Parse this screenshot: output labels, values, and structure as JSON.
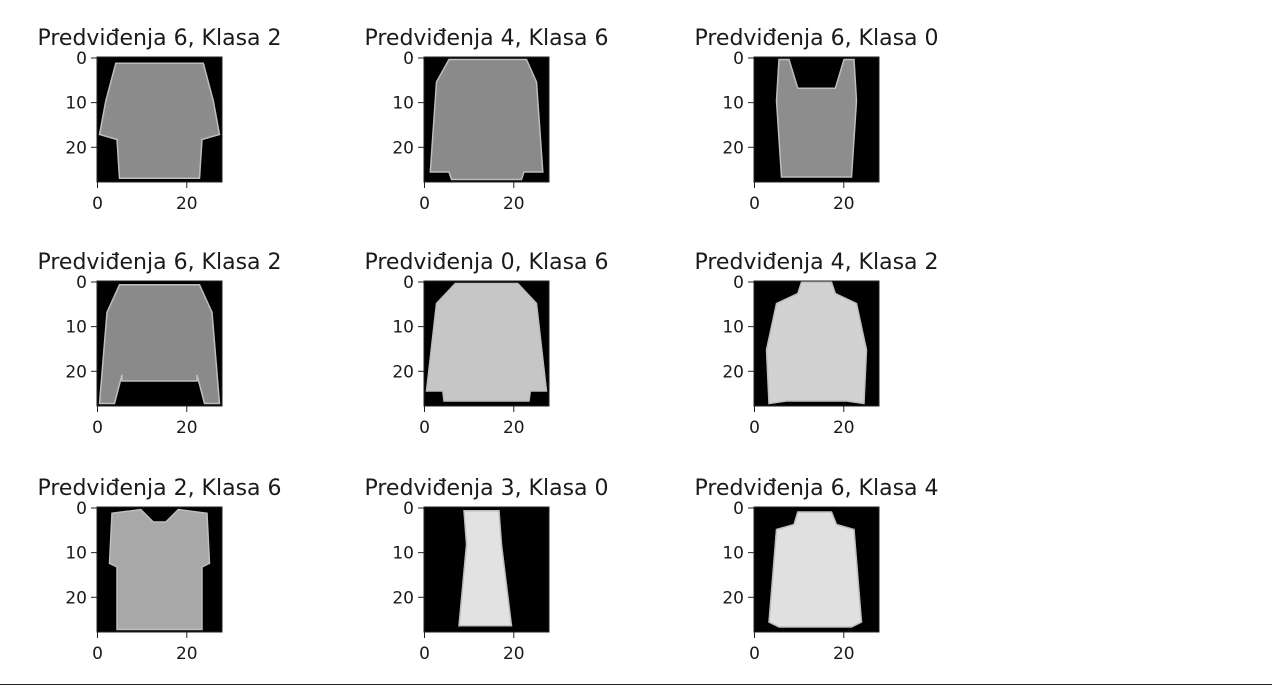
{
  "chart_data": {
    "type": "image-grid",
    "colormap": "gray",
    "image_size": [
      28,
      28
    ],
    "xticks": [
      0,
      20
    ],
    "yticks": [
      0,
      10,
      20
    ],
    "xtick_labels": [
      "0",
      "20"
    ],
    "ytick_labels": [
      "0",
      "10",
      "20"
    ],
    "panels": [
      {
        "title": "Predviđenja 6, Klasa 2",
        "predicted": 6,
        "class": 2,
        "garment": "pullover-short-sleeve"
      },
      {
        "title": "Predviđenja 4, Klasa 6",
        "predicted": 4,
        "class": 6,
        "garment": "shirt-long-sleeve"
      },
      {
        "title": "Predviđenja 6, Klasa 0",
        "predicted": 6,
        "class": 0,
        "garment": "tank-top"
      },
      {
        "title": "Predviđenja 6, Klasa 2",
        "predicted": 6,
        "class": 2,
        "garment": "sweater"
      },
      {
        "title": "Predviđenja 0, Klasa 6",
        "predicted": 0,
        "class": 6,
        "garment": "denim-jacket"
      },
      {
        "title": "Predviđenja 4, Klasa 2",
        "predicted": 4,
        "class": 2,
        "garment": "turtleneck"
      },
      {
        "title": "Predviđenja 2, Klasa 6",
        "predicted": 2,
        "class": 6,
        "garment": "t-shirt"
      },
      {
        "title": "Predviđenja 3, Klasa 0",
        "predicted": 3,
        "class": 0,
        "garment": "dress"
      },
      {
        "title": "Predviđenja 6, Klasa 4",
        "predicted": 6,
        "class": 4,
        "garment": "jacket"
      }
    ]
  }
}
